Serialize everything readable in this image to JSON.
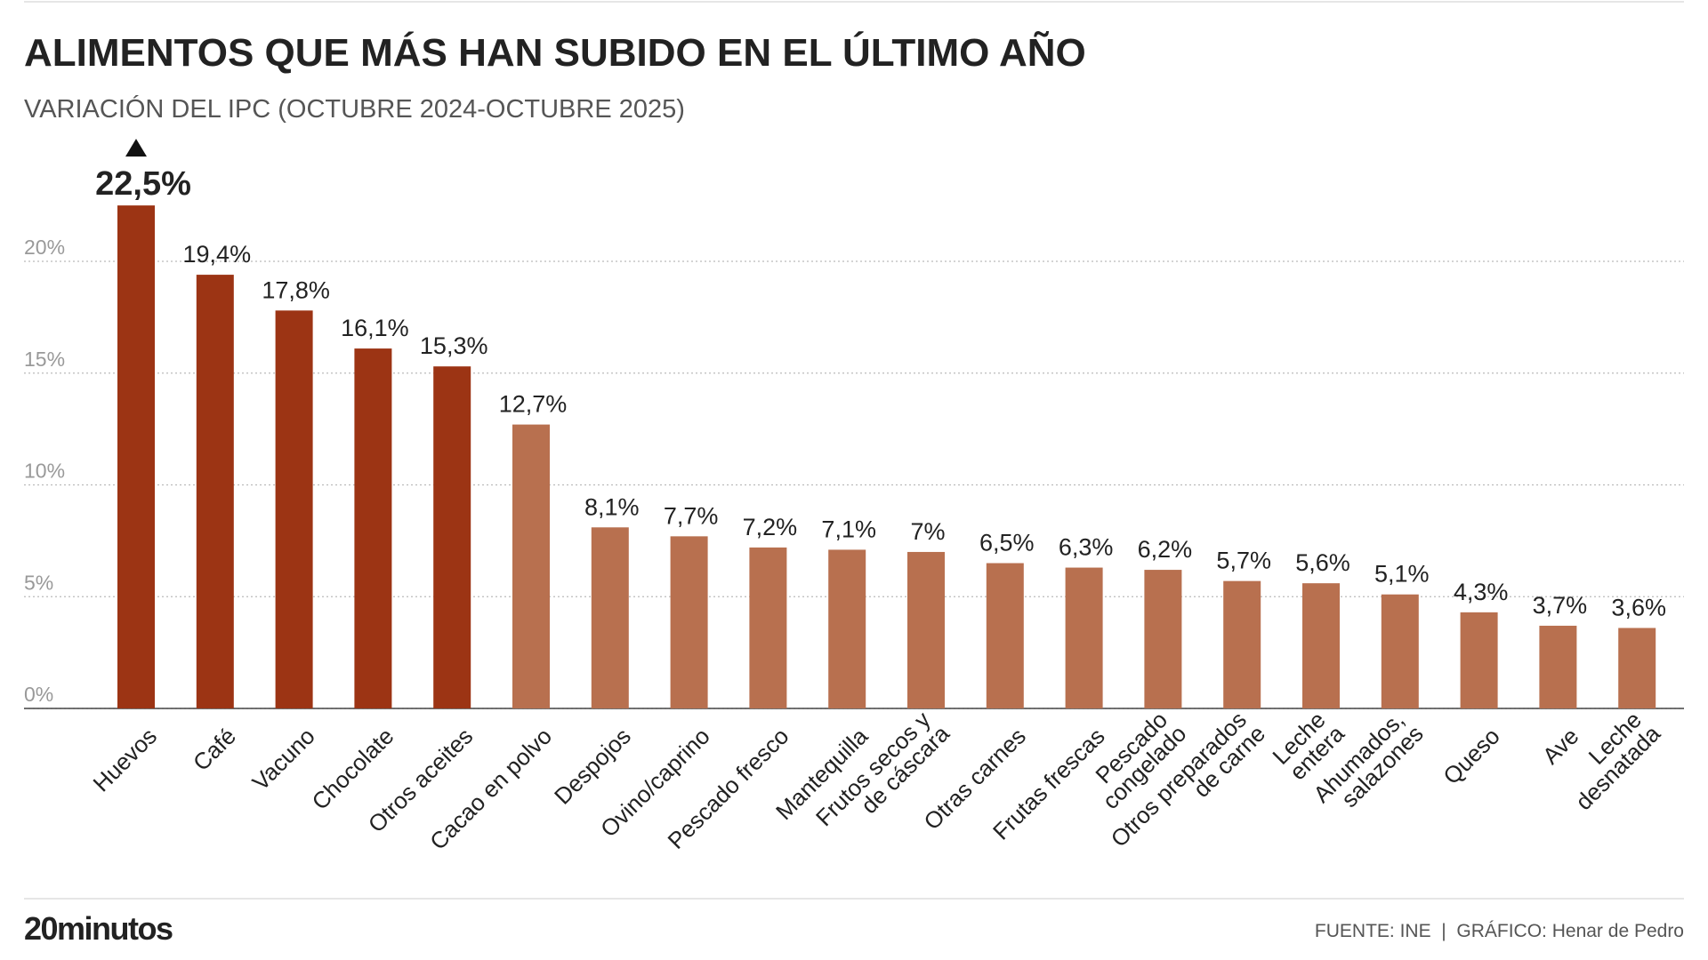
{
  "chart_data": {
    "type": "bar",
    "title": "ALIMENTOS QUE MÁS HAN SUBIDO EN EL ÚLTIMO AÑO",
    "subtitle": "VARIACIÓN DEL IPC (OCTUBRE 2024-OCTUBRE 2025)",
    "categories": [
      [
        "Huevos"
      ],
      [
        "Café"
      ],
      [
        "Vacuno"
      ],
      [
        "Chocolate"
      ],
      [
        "Otros aceites"
      ],
      [
        "Cacao en polvo"
      ],
      [
        "Despojos"
      ],
      [
        "Ovino/caprino"
      ],
      [
        "Pescado fresco"
      ],
      [
        "Mantequilla"
      ],
      [
        "Frutos secos y",
        "de cáscara"
      ],
      [
        "Otras carnes"
      ],
      [
        "Frutas frescas"
      ],
      [
        "Pescado",
        "congelado"
      ],
      [
        "Otros preparados",
        "de carne"
      ],
      [
        "Leche",
        "entera"
      ],
      [
        "Ahumados,",
        "salazones"
      ],
      [
        "Queso"
      ],
      [
        "Ave"
      ],
      [
        "Leche",
        "desnatada"
      ]
    ],
    "values": [
      22.5,
      19.4,
      17.8,
      16.1,
      15.3,
      12.7,
      8.1,
      7.7,
      7.2,
      7.1,
      7,
      6.5,
      6.3,
      6.2,
      5.7,
      5.6,
      5.1,
      4.3,
      3.7,
      3.6
    ],
    "value_labels": [
      "22,5%",
      "19,4%",
      "17,8%",
      "16,1%",
      "15,3%",
      "12,7%",
      "8,1%",
      "7,7%",
      "7,2%",
      "7,1%",
      "7%",
      "6,5%",
      "6,3%",
      "6,2%",
      "5,7%",
      "5,6%",
      "5,1%",
      "4,3%",
      "3,7%",
      "3,6%"
    ],
    "colors": [
      "#9c3414",
      "#9c3414",
      "#9c3414",
      "#9c3414",
      "#9c3414",
      "#b8704f",
      "#b8704f",
      "#b8704f",
      "#b8704f",
      "#b8704f",
      "#b8704f",
      "#b8704f",
      "#b8704f",
      "#b8704f",
      "#b8704f",
      "#b8704f",
      "#b8704f",
      "#b8704f",
      "#b8704f",
      "#b8704f"
    ],
    "ylim": [
      0,
      25
    ],
    "yticks": [
      {
        "value": 0,
        "label": "0%"
      },
      {
        "value": 5,
        "label": "5%"
      },
      {
        "value": 10,
        "label": "10%"
      },
      {
        "value": 15,
        "label": "15%"
      },
      {
        "value": 20,
        "label": "20%"
      }
    ],
    "grid": true,
    "brand": "20minutos",
    "source": "FUENTE: INE  |  GRÁFICO: Henar de Pedro"
  }
}
